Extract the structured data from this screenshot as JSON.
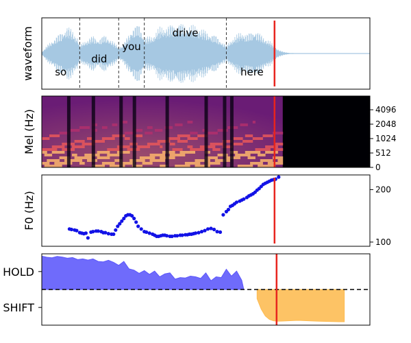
{
  "chart_data": [
    {
      "type": "area",
      "ylabel": "waveform",
      "x_range": [
        0,
        3.2
      ],
      "words": [
        {
          "label": "so",
          "start": 0.0,
          "end": 0.37
        },
        {
          "label": "did",
          "start": 0.37,
          "end": 0.75
        },
        {
          "label": "you",
          "start": 0.75,
          "end": 1.0
        },
        {
          "label": "drive",
          "start": 1.0,
          "end": 1.8
        },
        {
          "label": "here",
          "start": 1.8,
          "end": 2.3
        }
      ],
      "boundaries": [
        0.37,
        0.75,
        1.0,
        1.8
      ],
      "envelope": {
        "x": [
          0.0,
          0.08,
          0.15,
          0.25,
          0.3,
          0.35,
          0.37,
          0.42,
          0.5,
          0.55,
          0.62,
          0.68,
          0.75,
          0.8,
          0.88,
          0.95,
          1.0,
          1.08,
          1.15,
          1.25,
          1.32,
          1.4,
          1.5,
          1.6,
          1.7,
          1.8,
          1.85,
          1.95,
          2.0,
          2.08,
          2.15,
          2.22,
          2.28,
          2.32,
          2.36,
          2.42,
          2.5,
          3.2
        ],
        "amp": [
          0.05,
          0.35,
          0.55,
          0.85,
          0.72,
          0.5,
          0.25,
          0.4,
          0.55,
          0.45,
          0.58,
          0.42,
          0.2,
          0.3,
          0.8,
          0.92,
          0.5,
          0.55,
          0.82,
          0.88,
          0.96,
          0.9,
          0.86,
          0.7,
          0.55,
          0.25,
          0.45,
          0.7,
          0.6,
          0.75,
          0.55,
          0.4,
          0.2,
          0.1,
          0.05,
          0.02,
          0.01,
          0.01
        ]
      },
      "cursor_x": 2.27
    },
    {
      "type": "heatmap",
      "ylabel": "Mel (Hz)",
      "yticks": [
        "0",
        "512",
        "1024",
        "2048",
        "4096"
      ],
      "x_range": [
        0,
        3.2
      ],
      "voiced_until": 2.35,
      "cursor_x": 2.27
    },
    {
      "type": "scatter",
      "ylabel": "F0 (Hz)",
      "y_range": [
        92,
        228
      ],
      "yticks": [
        100,
        200
      ],
      "x_range": [
        0,
        3.2
      ],
      "points": {
        "x": [
          0.27,
          0.29,
          0.32,
          0.34,
          0.37,
          0.39,
          0.41,
          0.43,
          0.45,
          0.48,
          0.5,
          0.53,
          0.55,
          0.58,
          0.6,
          0.62,
          0.65,
          0.68,
          0.7,
          0.72,
          0.74,
          0.76,
          0.78,
          0.8,
          0.82,
          0.84,
          0.86,
          0.88,
          0.9,
          0.92,
          0.94,
          0.97,
          1.0,
          1.02,
          1.05,
          1.08,
          1.1,
          1.12,
          1.14,
          1.16,
          1.18,
          1.2,
          1.22,
          1.25,
          1.27,
          1.3,
          1.32,
          1.35,
          1.37,
          1.4,
          1.42,
          1.44,
          1.46,
          1.48,
          1.5,
          1.53,
          1.56,
          1.59,
          1.62,
          1.65,
          1.68,
          1.71,
          1.74,
          1.77,
          1.8,
          1.82,
          1.84,
          1.86,
          1.88,
          1.9,
          1.93,
          1.95,
          1.97,
          2.0,
          2.02,
          2.04,
          2.06,
          2.08,
          2.1,
          2.12,
          2.14,
          2.16,
          2.18,
          2.2,
          2.22,
          2.24,
          2.26,
          2.28,
          2.31
        ],
        "y": [
          125,
          124,
          123,
          122,
          118,
          117,
          116,
          117,
          108,
          119,
          120,
          121,
          121,
          120,
          118,
          118,
          116,
          115,
          115,
          123,
          130,
          135,
          140,
          145,
          150,
          152,
          152,
          150,
          145,
          138,
          130,
          125,
          120,
          119,
          117,
          115,
          113,
          111,
          111,
          112,
          113,
          113,
          112,
          111,
          111,
          112,
          112,
          113,
          113,
          114,
          114,
          115,
          115,
          116,
          117,
          118,
          120,
          122,
          125,
          126,
          124,
          120,
          119,
          152,
          158,
          162,
          168,
          170,
          173,
          176,
          178,
          180,
          182,
          185,
          188,
          190,
          192,
          195,
          199,
          202,
          206,
          210,
          212,
          214,
          216,
          218,
          219,
          220,
          224
        ]
      },
      "cursor_x": 2.27
    },
    {
      "type": "area",
      "yticks": [
        "HOLD",
        "SHIFT"
      ],
      "x_range": [
        0,
        3.2
      ],
      "y_range": [
        -1.55,
        1.55
      ],
      "threshold": 0,
      "series": [
        {
          "label": "HOLD",
          "color": "#5b56fb",
          "x": [
            0.0,
            0.05,
            0.1,
            0.15,
            0.2,
            0.25,
            0.3,
            0.35,
            0.4,
            0.45,
            0.5,
            0.55,
            0.6,
            0.65,
            0.7,
            0.75,
            0.8,
            0.85,
            0.9,
            0.95,
            1.0,
            1.05,
            1.1,
            1.15,
            1.2,
            1.25,
            1.3,
            1.35,
            1.4,
            1.45,
            1.5,
            1.55,
            1.6,
            1.65,
            1.7,
            1.75,
            1.8,
            1.85,
            1.9,
            1.95,
            1.97
          ],
          "y": [
            1.45,
            1.4,
            1.38,
            1.44,
            1.41,
            1.36,
            1.39,
            1.3,
            1.33,
            1.28,
            1.33,
            1.22,
            1.2,
            1.27,
            1.18,
            1.05,
            1.22,
            0.9,
            0.84,
            0.7,
            0.82,
            0.66,
            0.8,
            0.55,
            0.68,
            0.72,
            0.45,
            0.52,
            0.5,
            0.58,
            0.55,
            0.48,
            0.72,
            0.38,
            0.55,
            0.52,
            0.88,
            0.58,
            0.8,
            0.4,
            0.0
          ]
        },
        {
          "label": "SHIFT",
          "color": "#fdbb50",
          "x": [
            2.1,
            2.14,
            2.18,
            2.22,
            2.26,
            2.3,
            2.35,
            2.4,
            2.5,
            2.6,
            2.7,
            2.8,
            2.9,
            2.95
          ],
          "y": [
            -0.4,
            -0.85,
            -1.15,
            -1.3,
            -1.36,
            -1.38,
            -1.37,
            -1.36,
            -1.34,
            -1.36,
            -1.38,
            -1.39,
            -1.4,
            -1.4
          ]
        }
      ],
      "cursor_x": 2.29
    }
  ]
}
